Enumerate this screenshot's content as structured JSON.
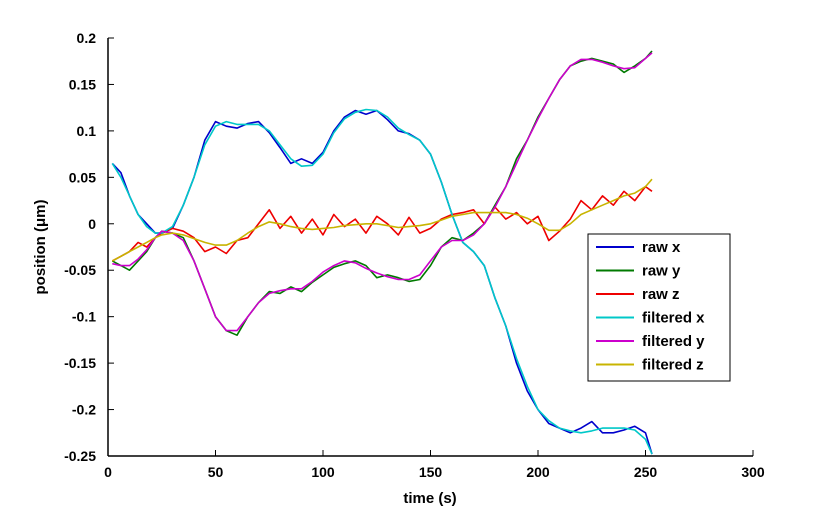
{
  "chart_data": {
    "type": "line",
    "xlabel": "time (s)",
    "ylabel": "position (μm)",
    "xlim": [
      0,
      300
    ],
    "ylim": [
      -0.25,
      0.2
    ],
    "xticks": [
      0,
      50,
      100,
      150,
      200,
      250,
      300
    ],
    "xtick_labels": [
      "0",
      "50",
      "100",
      "150",
      "200",
      "250",
      "300"
    ],
    "yticks": [
      0.2,
      0.15,
      0.1,
      0.05,
      0,
      -0.05,
      -0.1,
      -0.15,
      -0.2,
      -0.25
    ],
    "ytick_labels": [
      "0.2",
      "0.15",
      "0.1",
      "0.05",
      "0",
      "-0.05",
      "-0.1",
      "-0.15",
      "-0.2",
      "-0.25"
    ],
    "grid": false,
    "legend_position": "right",
    "series": [
      {
        "name": "raw x",
        "color": "#0000cc",
        "x": [
          2,
          6,
          10,
          14,
          18,
          22,
          25,
          30,
          35,
          40,
          45,
          50,
          55,
          60,
          65,
          70,
          75,
          80,
          85,
          90,
          95,
          100,
          105,
          110,
          115,
          120,
          125,
          130,
          135,
          140,
          145,
          150,
          155,
          160,
          165,
          170,
          175,
          180,
          185,
          190,
          195,
          200,
          205,
          210,
          215,
          220,
          225,
          230,
          235,
          240,
          245,
          250,
          253
        ],
        "y": [
          0.065,
          0.055,
          0.03,
          0.01,
          0.0,
          -0.01,
          -0.01,
          -0.005,
          0.02,
          0.05,
          0.09,
          0.11,
          0.105,
          0.103,
          0.108,
          0.11,
          0.098,
          0.082,
          0.065,
          0.07,
          0.065,
          0.077,
          0.1,
          0.115,
          0.122,
          0.118,
          0.122,
          0.112,
          0.1,
          0.097,
          0.09,
          0.075,
          0.045,
          0.01,
          -0.02,
          -0.03,
          -0.045,
          -0.08,
          -0.11,
          -0.15,
          -0.18,
          -0.2,
          -0.215,
          -0.22,
          -0.225,
          -0.22,
          -0.213,
          -0.225,
          -0.225,
          -0.222,
          -0.218,
          -0.225,
          -0.248
        ]
      },
      {
        "name": "raw y",
        "color": "#007a00",
        "x": [
          2,
          6,
          10,
          14,
          18,
          22,
          25,
          30,
          35,
          40,
          45,
          50,
          55,
          60,
          65,
          70,
          75,
          80,
          85,
          90,
          95,
          100,
          105,
          110,
          115,
          120,
          125,
          130,
          135,
          140,
          145,
          150,
          155,
          160,
          165,
          170,
          175,
          180,
          185,
          190,
          195,
          200,
          205,
          210,
          215,
          220,
          225,
          230,
          235,
          240,
          245,
          250,
          253
        ],
        "y": [
          -0.04,
          -0.045,
          -0.05,
          -0.04,
          -0.03,
          -0.015,
          -0.008,
          -0.01,
          -0.015,
          -0.04,
          -0.07,
          -0.1,
          -0.115,
          -0.12,
          -0.1,
          -0.085,
          -0.073,
          -0.075,
          -0.068,
          -0.073,
          -0.063,
          -0.055,
          -0.047,
          -0.043,
          -0.04,
          -0.045,
          -0.058,
          -0.055,
          -0.058,
          -0.062,
          -0.06,
          -0.045,
          -0.025,
          -0.015,
          -0.018,
          -0.01,
          0.0,
          0.02,
          0.04,
          0.07,
          0.09,
          0.115,
          0.135,
          0.155,
          0.17,
          0.175,
          0.178,
          0.175,
          0.172,
          0.163,
          0.17,
          0.178,
          0.186
        ]
      },
      {
        "name": "raw z",
        "color": "#ee0000",
        "x": [
          2,
          6,
          10,
          14,
          18,
          22,
          25,
          30,
          35,
          40,
          45,
          50,
          55,
          60,
          65,
          70,
          75,
          80,
          85,
          90,
          95,
          100,
          105,
          110,
          115,
          120,
          125,
          130,
          135,
          140,
          145,
          150,
          155,
          160,
          165,
          170,
          175,
          180,
          185,
          190,
          195,
          200,
          205,
          210,
          215,
          220,
          225,
          230,
          235,
          240,
          245,
          250,
          253
        ],
        "y": [
          -0.04,
          -0.035,
          -0.03,
          -0.02,
          -0.025,
          -0.015,
          -0.01,
          -0.005,
          -0.008,
          -0.015,
          -0.03,
          -0.025,
          -0.032,
          -0.018,
          -0.015,
          0.0,
          0.015,
          -0.005,
          0.008,
          -0.01,
          0.005,
          -0.012,
          0.01,
          -0.003,
          0.005,
          -0.01,
          0.008,
          0.0,
          -0.012,
          0.007,
          -0.01,
          -0.005,
          0.005,
          0.01,
          0.012,
          0.015,
          0.0,
          0.018,
          0.005,
          0.012,
          0.0,
          0.008,
          -0.018,
          -0.008,
          0.005,
          0.025,
          0.015,
          0.03,
          0.02,
          0.035,
          0.025,
          0.04,
          0.035
        ]
      },
      {
        "name": "filtered x",
        "color": "#00c8c8",
        "x": [
          2,
          6,
          10,
          14,
          18,
          22,
          25,
          30,
          35,
          40,
          45,
          50,
          55,
          60,
          65,
          70,
          75,
          80,
          85,
          90,
          95,
          100,
          105,
          110,
          115,
          120,
          125,
          130,
          135,
          140,
          145,
          150,
          155,
          160,
          165,
          170,
          175,
          180,
          185,
          190,
          195,
          200,
          205,
          210,
          215,
          220,
          225,
          230,
          235,
          240,
          245,
          250,
          253
        ],
        "y": [
          0.065,
          0.05,
          0.03,
          0.01,
          -0.003,
          -0.01,
          -0.01,
          -0.003,
          0.02,
          0.05,
          0.085,
          0.105,
          0.11,
          0.107,
          0.107,
          0.107,
          0.1,
          0.085,
          0.07,
          0.062,
          0.063,
          0.075,
          0.098,
          0.113,
          0.12,
          0.123,
          0.122,
          0.115,
          0.103,
          0.096,
          0.09,
          0.075,
          0.045,
          0.01,
          -0.02,
          -0.03,
          -0.045,
          -0.08,
          -0.11,
          -0.145,
          -0.175,
          -0.2,
          -0.212,
          -0.22,
          -0.223,
          -0.225,
          -0.223,
          -0.22,
          -0.22,
          -0.22,
          -0.222,
          -0.232,
          -0.248
        ]
      },
      {
        "name": "filtered y",
        "color": "#cc00cc",
        "x": [
          2,
          6,
          10,
          14,
          18,
          22,
          25,
          30,
          35,
          40,
          45,
          50,
          55,
          60,
          65,
          70,
          75,
          80,
          85,
          90,
          95,
          100,
          105,
          110,
          115,
          120,
          125,
          130,
          135,
          140,
          145,
          150,
          155,
          160,
          165,
          170,
          175,
          180,
          185,
          190,
          195,
          200,
          205,
          210,
          215,
          220,
          225,
          230,
          235,
          240,
          245,
          250,
          253
        ],
        "y": [
          -0.043,
          -0.045,
          -0.045,
          -0.038,
          -0.028,
          -0.015,
          -0.008,
          -0.01,
          -0.018,
          -0.04,
          -0.07,
          -0.1,
          -0.115,
          -0.115,
          -0.1,
          -0.085,
          -0.075,
          -0.072,
          -0.07,
          -0.07,
          -0.062,
          -0.052,
          -0.045,
          -0.04,
          -0.042,
          -0.048,
          -0.053,
          -0.057,
          -0.06,
          -0.06,
          -0.055,
          -0.04,
          -0.025,
          -0.018,
          -0.018,
          -0.012,
          0.0,
          0.018,
          0.04,
          0.065,
          0.09,
          0.113,
          0.135,
          0.155,
          0.17,
          0.177,
          0.177,
          0.174,
          0.17,
          0.167,
          0.168,
          0.178,
          0.184
        ]
      },
      {
        "name": "filtered z",
        "color": "#c8b400",
        "x": [
          2,
          6,
          10,
          14,
          18,
          22,
          25,
          30,
          35,
          40,
          45,
          50,
          55,
          60,
          65,
          70,
          75,
          80,
          85,
          90,
          95,
          100,
          105,
          110,
          115,
          120,
          125,
          130,
          135,
          140,
          145,
          150,
          155,
          160,
          165,
          170,
          175,
          180,
          185,
          190,
          195,
          200,
          205,
          210,
          215,
          220,
          225,
          230,
          235,
          240,
          245,
          250,
          253
        ],
        "y": [
          -0.04,
          -0.035,
          -0.03,
          -0.025,
          -0.02,
          -0.015,
          -0.012,
          -0.01,
          -0.012,
          -0.016,
          -0.02,
          -0.023,
          -0.023,
          -0.018,
          -0.01,
          -0.003,
          0.002,
          0.0,
          -0.003,
          -0.005,
          -0.006,
          -0.005,
          -0.004,
          -0.002,
          -0.001,
          0.0,
          0.0,
          -0.002,
          -0.004,
          -0.003,
          -0.002,
          0.0,
          0.004,
          0.008,
          0.01,
          0.012,
          0.012,
          0.012,
          0.012,
          0.01,
          0.006,
          0.0,
          -0.007,
          -0.007,
          0.0,
          0.01,
          0.015,
          0.02,
          0.025,
          0.03,
          0.033,
          0.04,
          0.048
        ]
      }
    ]
  }
}
